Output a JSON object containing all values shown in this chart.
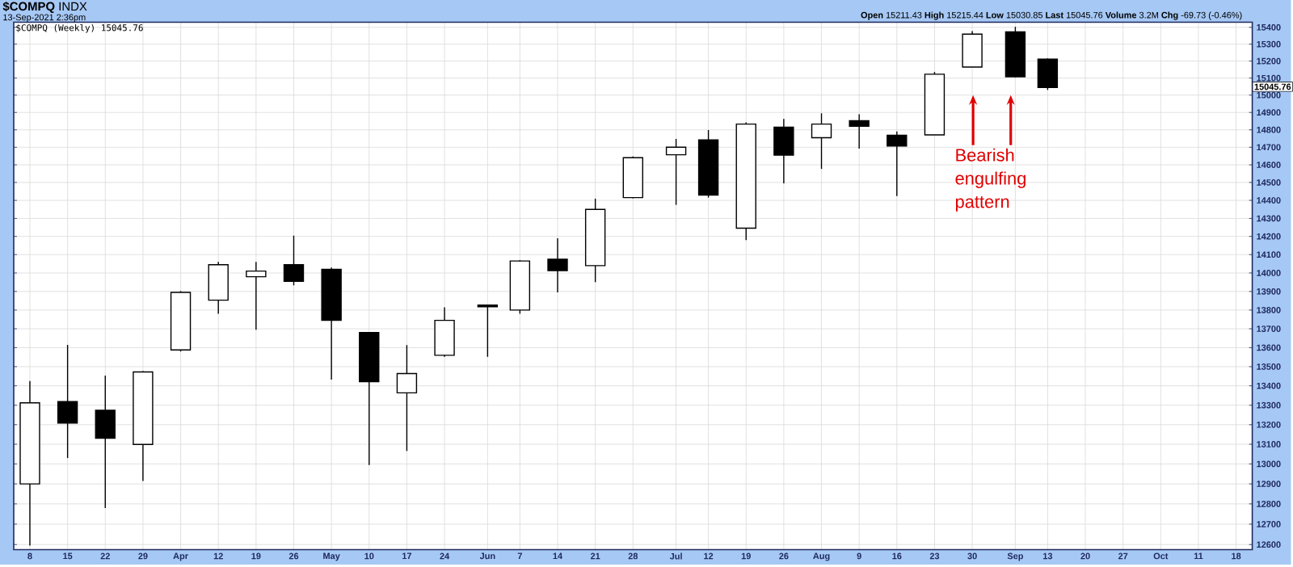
{
  "chart_data": {
    "type": "candlestick",
    "title": "**$COMPQ** INDX",
    "subtitle": "13-Sep-2021 2:36pm",
    "annotations": [
      "$COMPQ (Weekly) 15045.76",
      "**Open** 15211.43 **High** 15215.44 **Low** 15030.85 **Last** 15045.76 **Volume** 3.2M **Chg** -69.73 (-0.46%)",
      "Bearish engulfing pattern",
      "15045.76"
    ],
    "x": [
      "2021-03-08",
      "2021-03-15",
      "2021-03-22",
      "2021-03-29",
      "2021-04-05",
      "2021-04-12",
      "2021-04-19",
      "2021-04-26",
      "2021-05-03",
      "2021-05-10",
      "2021-05-17",
      "2021-05-24",
      "2021-06-01",
      "2021-06-07",
      "2021-06-14",
      "2021-06-21",
      "2021-06-28",
      "2021-07-06",
      "2021-07-12",
      "2021-07-19",
      "2021-07-26",
      "2021-08-02",
      "2021-08-09",
      "2021-08-16",
      "2021-08-23",
      "2021-08-30",
      "2021-09-07",
      "2021-09-13"
    ],
    "ohlc": [
      [
        12900,
        13425,
        12595,
        13312
      ],
      [
        13318,
        13615,
        13030,
        13208
      ],
      [
        13274,
        13454,
        12780,
        13130
      ],
      [
        13099,
        13477,
        12914,
        13473
      ],
      [
        13588,
        13902,
        13580,
        13895
      ],
      [
        13853,
        14060,
        13780,
        14045
      ],
      [
        13980,
        14060,
        13695,
        14010
      ],
      [
        14045,
        14205,
        13933,
        13955
      ],
      [
        14020,
        14030,
        13432,
        13745
      ],
      [
        13680,
        13680,
        12995,
        13422
      ],
      [
        13364,
        13614,
        13066,
        13464
      ],
      [
        13560,
        13815,
        13552,
        13745
      ],
      [
        13827,
        13830,
        13552,
        13818
      ],
      [
        13800,
        14070,
        13780,
        14065
      ],
      [
        14075,
        14190,
        13895,
        14013
      ],
      [
        14040,
        14410,
        13950,
        14350
      ],
      [
        14415,
        14648,
        14412,
        14640
      ],
      [
        14657,
        14748,
        14375,
        14700
      ],
      [
        14741,
        14798,
        14415,
        14430
      ],
      [
        14245,
        14843,
        14180,
        14833
      ],
      [
        14815,
        14862,
        14496,
        14655
      ],
      [
        14755,
        14895,
        14577,
        14833
      ],
      [
        14852,
        14890,
        14692,
        14820
      ],
      [
        14768,
        14790,
        14424,
        14707
      ],
      [
        14770,
        15135,
        14770,
        15123
      ],
      [
        15164,
        15378,
        15164,
        15359
      ],
      [
        15373,
        15403,
        15103,
        15107
      ],
      [
        15211.43,
        15215.44,
        15030.85,
        15045.76
      ]
    ],
    "colors": [
      "#ffffff",
      "#000000",
      "#000000",
      "#ffffff",
      "#ffffff",
      "#ffffff",
      "#ffffff",
      "#000000",
      "#000000",
      "#000000",
      "#ffffff",
      "#ffffff",
      "#000000",
      "#ffffff",
      "#000000",
      "#ffffff",
      "#ffffff",
      "#ffffff",
      "#000000",
      "#ffffff",
      "#000000",
      "#ffffff",
      "#000000",
      "#000000",
      "#ffffff",
      "#ffffff",
      "#000000",
      "#000000"
    ],
    "xlim": [
      "2021-03-05",
      "2021-10-21"
    ],
    "xticks": [
      {
        "value": "2021-03-08",
        "label": "8"
      },
      {
        "value": "2021-03-15",
        "label": "15"
      },
      {
        "value": "2021-03-22",
        "label": "22"
      },
      {
        "value": "2021-03-29",
        "label": "29"
      },
      {
        "value": "2021-04-05",
        "label": "Apr"
      },
      {
        "value": "2021-04-12",
        "label": "12"
      },
      {
        "value": "2021-04-19",
        "label": "19"
      },
      {
        "value": "2021-04-26",
        "label": "26"
      },
      {
        "value": "2021-05-03",
        "label": "May"
      },
      {
        "value": "2021-05-10",
        "label": "10"
      },
      {
        "value": "2021-05-17",
        "label": "17"
      },
      {
        "value": "2021-05-24",
        "label": "24"
      },
      {
        "value": "2021-06-01",
        "label": "Jun"
      },
      {
        "value": "2021-06-07",
        "label": "7"
      },
      {
        "value": "2021-06-14",
        "label": "14"
      },
      {
        "value": "2021-06-21",
        "label": "21"
      },
      {
        "value": "2021-06-28",
        "label": "28"
      },
      {
        "value": "2021-07-06",
        "label": "Jul"
      },
      {
        "value": "2021-07-12",
        "label": "12"
      },
      {
        "value": "2021-07-19",
        "label": "19"
      },
      {
        "value": "2021-07-26",
        "label": "26"
      },
      {
        "value": "2021-08-02",
        "label": "Aug"
      },
      {
        "value": "2021-08-09",
        "label": "9"
      },
      {
        "value": "2021-08-16",
        "label": "16"
      },
      {
        "value": "2021-08-23",
        "label": "23"
      },
      {
        "value": "2021-08-30",
        "label": "30"
      },
      {
        "value": "2021-09-07",
        "label": "Sep"
      },
      {
        "value": "2021-09-13",
        "label": "13"
      },
      {
        "value": "2021-09-20",
        "label": "20"
      },
      {
        "value": "2021-09-27",
        "label": "27"
      },
      {
        "value": "2021-10-04",
        "label": "Oct"
      },
      {
        "value": "2021-10-11",
        "label": "11"
      },
      {
        "value": "2021-10-18",
        "label": "18"
      }
    ],
    "ylim": [
      12575,
      15430
    ],
    "yticks": [
      12600,
      12700,
      12800,
      12900,
      13000,
      13100,
      13200,
      13300,
      13400,
      13500,
      13600,
      13700,
      13800,
      13900,
      14000,
      14100,
      14200,
      14300,
      14400,
      14500,
      14600,
      14700,
      14800,
      14900,
      15000,
      15100,
      15200,
      15300,
      15400
    ],
    "log": true,
    "grid": true
  }
}
